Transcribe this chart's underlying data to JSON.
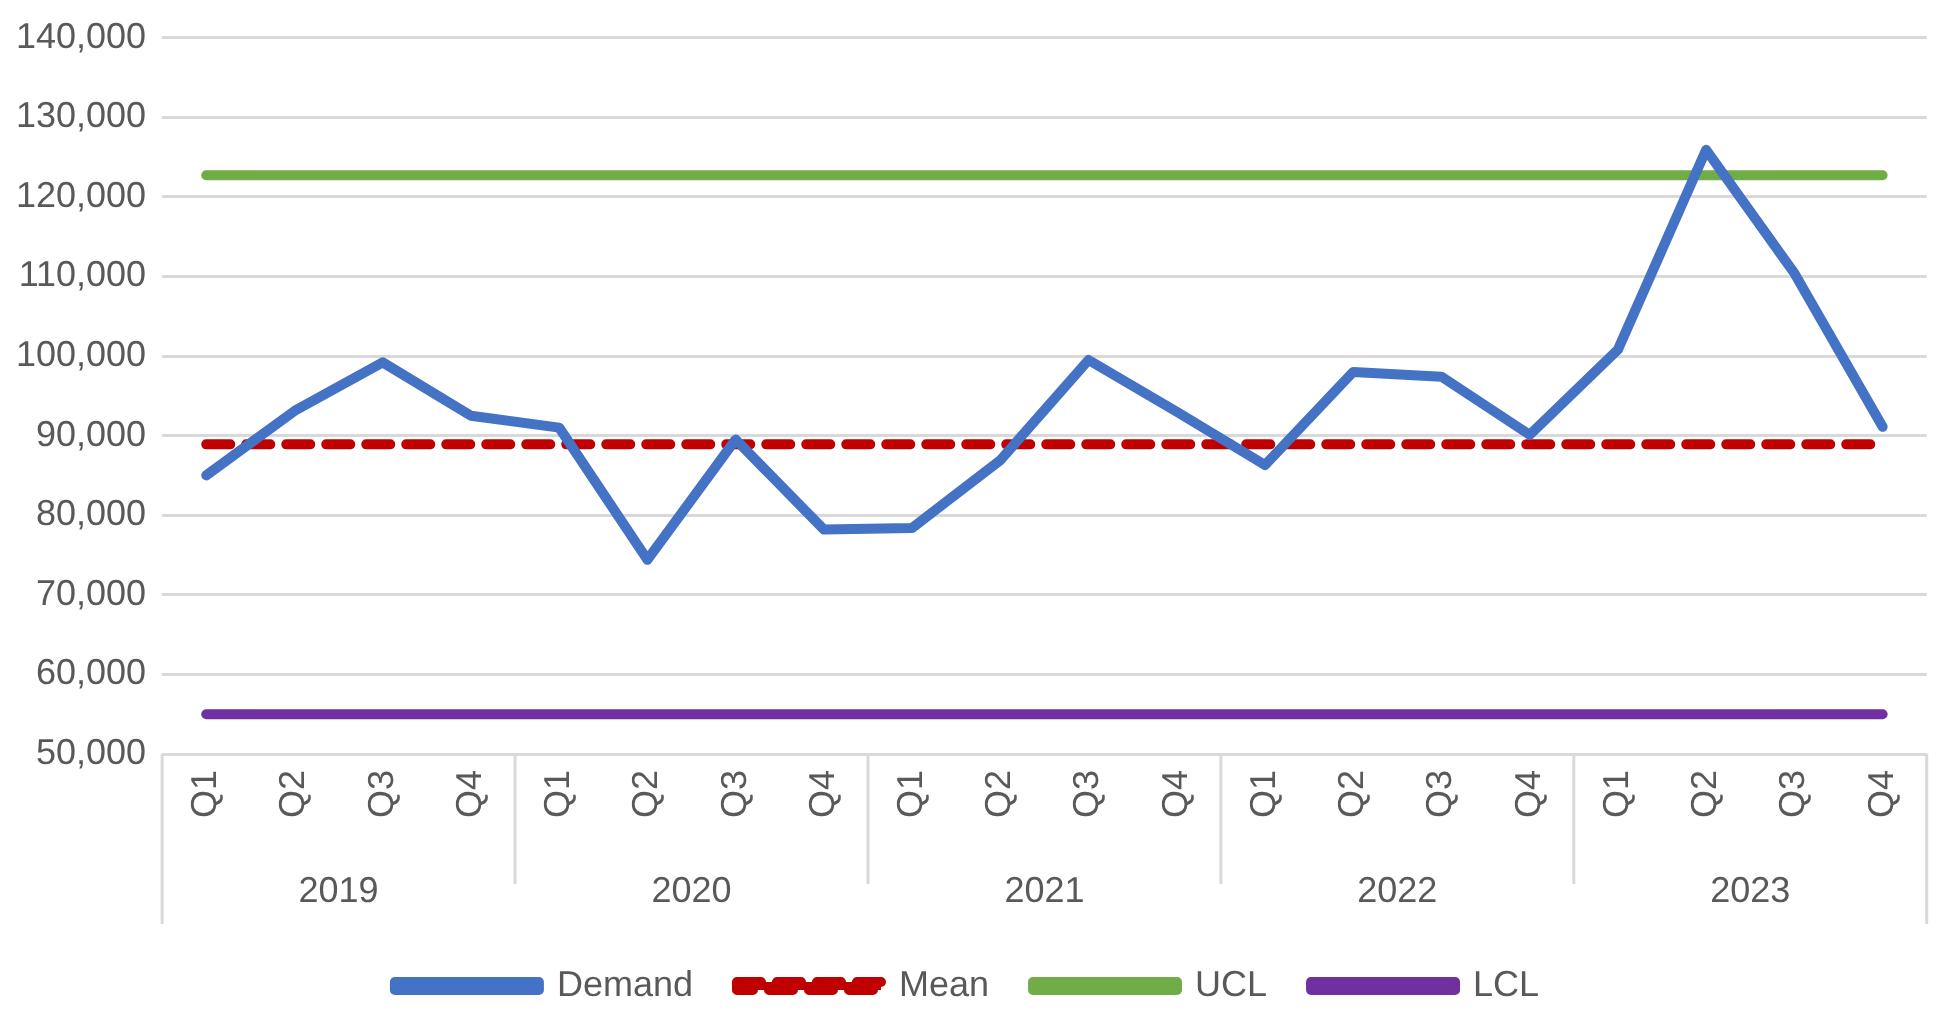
{
  "chart_data": {
    "type": "line",
    "categories": [
      "Q1",
      "Q2",
      "Q3",
      "Q4",
      "Q1",
      "Q2",
      "Q3",
      "Q4",
      "Q1",
      "Q2",
      "Q3",
      "Q4",
      "Q1",
      "Q2",
      "Q3",
      "Q4",
      "Q1",
      "Q2",
      "Q3",
      "Q4"
    ],
    "annotations": [
      "2019",
      "2020",
      "2021",
      "2022",
      "2023"
    ],
    "series": [
      {
        "name": "Demand",
        "color": "#4472c4",
        "values": [
          85000,
          93100,
          99200,
          92500,
          91000,
          74400,
          89500,
          78200,
          78400,
          86900,
          99500,
          93000,
          86300,
          98000,
          97400,
          90100,
          100800,
          125900,
          110400,
          91100
        ]
      },
      {
        "name": "Mean",
        "color": "#c00000",
        "line_style": "dashed",
        "values": [
          88900,
          88900,
          88900,
          88900,
          88900,
          88900,
          88900,
          88900,
          88900,
          88900,
          88900,
          88900,
          88900,
          88900,
          88900,
          88900,
          88900,
          88900,
          88900,
          88900
        ]
      },
      {
        "name": "UCL",
        "color": "#70ad47",
        "values": [
          122700,
          122700,
          122700,
          122700,
          122700,
          122700,
          122700,
          122700,
          122700,
          122700,
          122700,
          122700,
          122700,
          122700,
          122700,
          122700,
          122700,
          122700,
          122700,
          122700
        ]
      },
      {
        "name": "LCL",
        "color": "#7030a0",
        "values": [
          55000,
          55000,
          55000,
          55000,
          55000,
          55000,
          55000,
          55000,
          55000,
          55000,
          55000,
          55000,
          55000,
          55000,
          55000,
          55000,
          55000,
          55000,
          55000,
          55000
        ]
      }
    ],
    "ylim": [
      50000,
      140000
    ],
    "yticks": [
      {
        "value": 50000,
        "label": "50,000"
      },
      {
        "value": 60000,
        "label": "60,000"
      },
      {
        "value": 70000,
        "label": "70,000"
      },
      {
        "value": 80000,
        "label": "80,000"
      },
      {
        "value": 90000,
        "label": "90,000"
      },
      {
        "value": 100000,
        "label": "100,000"
      },
      {
        "value": 110000,
        "label": "110,000"
      },
      {
        "value": 120000,
        "label": "120,000"
      },
      {
        "value": 130000,
        "label": "130,000"
      },
      {
        "value": 140000,
        "label": "140,000"
      }
    ],
    "grid": "y",
    "legend": "bottom",
    "marker": "none"
  }
}
